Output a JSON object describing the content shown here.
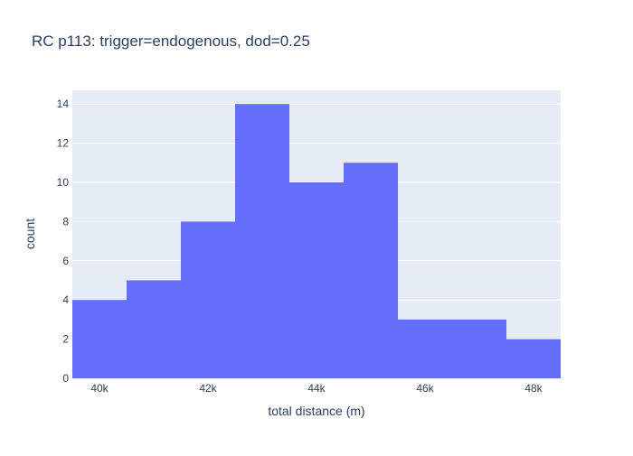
{
  "chart_data": {
    "type": "bar",
    "title": "RC p113: trigger=endogenous, dod=0.25",
    "xlabel": "total distance (m)",
    "ylabel": "count",
    "xlim": [
      39500,
      48500
    ],
    "ylim": [
      0,
      14.7
    ],
    "x_ticks": [
      {
        "value": 40000,
        "label": "40k"
      },
      {
        "value": 42000,
        "label": "42k"
      },
      {
        "value": 44000,
        "label": "44k"
      },
      {
        "value": 46000,
        "label": "46k"
      },
      {
        "value": 48000,
        "label": "48k"
      }
    ],
    "y_ticks": [
      0,
      2,
      4,
      6,
      8,
      10,
      12,
      14
    ],
    "grid": true,
    "bar_color": "#636efa",
    "plot_bg": "#e5ecf6",
    "bins": [
      {
        "start": 39500,
        "end": 40500,
        "count": 4
      },
      {
        "start": 40500,
        "end": 41500,
        "count": 5
      },
      {
        "start": 41500,
        "end": 42500,
        "count": 8
      },
      {
        "start": 42500,
        "end": 43500,
        "count": 14
      },
      {
        "start": 43500,
        "end": 44500,
        "count": 10
      },
      {
        "start": 44500,
        "end": 45500,
        "count": 11
      },
      {
        "start": 45500,
        "end": 46500,
        "count": 3
      },
      {
        "start": 46500,
        "end": 47500,
        "count": 3
      },
      {
        "start": 47500,
        "end": 48500,
        "count": 2
      }
    ]
  }
}
